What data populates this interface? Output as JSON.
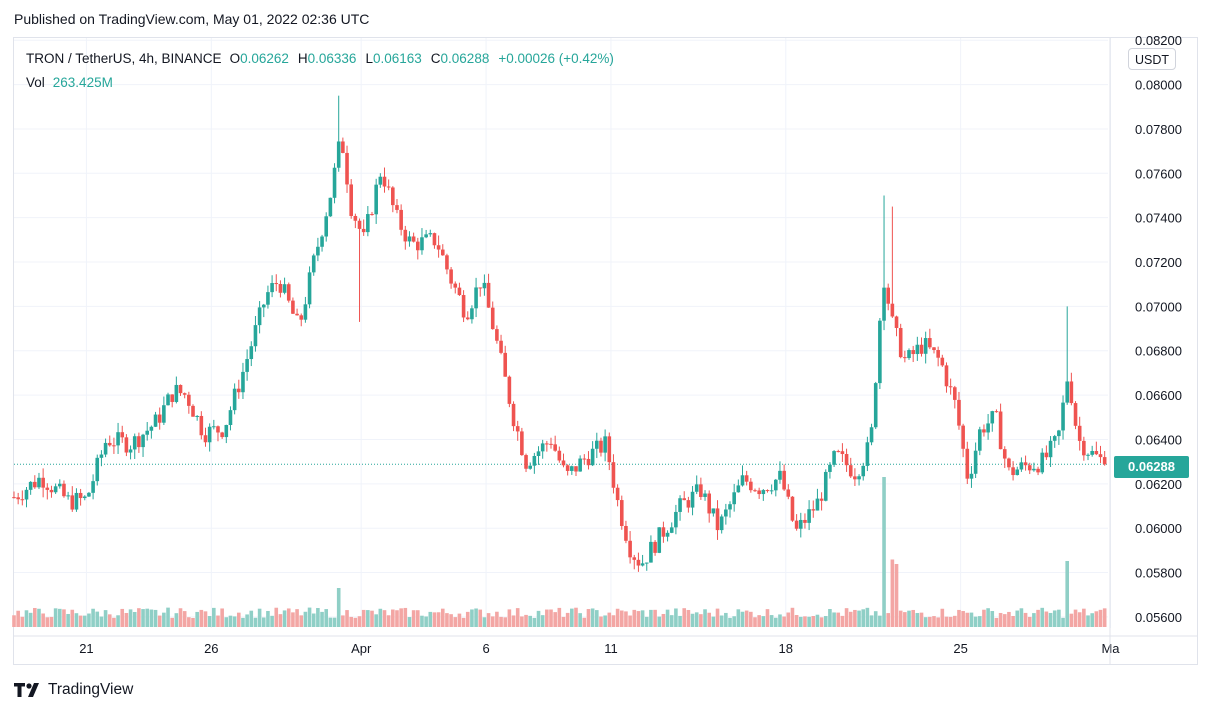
{
  "header": {
    "published": "Published on TradingView.com, May 01, 2022 02:36 UTC"
  },
  "legend": {
    "symbol": "TRON / TetherUS, 4h, BINANCE",
    "o_label": "O",
    "o_value": "0.06262",
    "h_label": "H",
    "h_value": "0.06336",
    "l_label": "L",
    "l_value": "0.06163",
    "c_label": "C",
    "c_value": "0.06288",
    "change": "+0.00026 (+0.42%)",
    "vol_label": "Vol",
    "vol_value": "263.425M"
  },
  "price_axis": {
    "unit": "USDT",
    "current_price_label": "0.06288"
  },
  "brand": {
    "name": "TradingView"
  },
  "colors": {
    "up": "#26a69a",
    "down": "#ef5350",
    "up_volume": "#8fcfc6",
    "down_volume": "#f3a6a4",
    "grid": "#f0f3fa"
  },
  "chart_data": {
    "type": "candlestick",
    "title": "TRON / TetherUS, 4h, BINANCE",
    "y_axis": {
      "ticks": [
        "0.08200",
        "0.08000",
        "0.07800",
        "0.07600",
        "0.07400",
        "0.07200",
        "0.07000",
        "0.06800",
        "0.06600",
        "0.06400",
        "0.06200",
        "0.06000",
        "0.05800",
        "0.05600"
      ],
      "range": [
        0.0555,
        0.0821
      ]
    },
    "x_axis": {
      "ticks": [
        {
          "label": "21",
          "day": 1
        },
        {
          "label": "26",
          "day": 6
        },
        {
          "label": "Apr",
          "day": 12
        },
        {
          "label": "6",
          "day": 17
        },
        {
          "label": "11",
          "day": 22
        },
        {
          "label": "18",
          "day": 29
        },
        {
          "label": "25",
          "day": 36
        },
        {
          "label": "Ma",
          "day": 42
        }
      ],
      "range_days": [
        -1.9,
        41.9
      ]
    },
    "last_close": 0.06288,
    "anchors": [
      {
        "day": -1.9,
        "price": 0.0614
      },
      {
        "day": -0.8,
        "price": 0.0623
      },
      {
        "day": 0.3,
        "price": 0.0612
      },
      {
        "day": 1.0,
        "price": 0.0613
      },
      {
        "day": 1.8,
        "price": 0.064
      },
      {
        "day": 2.8,
        "price": 0.0638
      },
      {
        "day": 3.8,
        "price": 0.0648
      },
      {
        "day": 4.5,
        "price": 0.0662
      },
      {
        "day": 5.0,
        "price": 0.066
      },
      {
        "day": 5.7,
        "price": 0.0643
      },
      {
        "day": 6.5,
        "price": 0.0645
      },
      {
        "day": 7.2,
        "price": 0.0668
      },
      {
        "day": 8.2,
        "price": 0.0705
      },
      {
        "day": 8.7,
        "price": 0.0712
      },
      {
        "day": 9.5,
        "price": 0.069
      },
      {
        "day": 10.1,
        "price": 0.072
      },
      {
        "day": 10.8,
        "price": 0.0752
      },
      {
        "day": 11.2,
        "price": 0.0777
      },
      {
        "day": 11.6,
        "price": 0.0745
      },
      {
        "day": 12.1,
        "price": 0.073
      },
      {
        "day": 12.8,
        "price": 0.0762
      },
      {
        "day": 13.4,
        "price": 0.074
      },
      {
        "day": 14.0,
        "price": 0.0728
      },
      {
        "day": 15.0,
        "price": 0.073
      },
      {
        "day": 15.6,
        "price": 0.0712
      },
      {
        "day": 16.2,
        "price": 0.0697
      },
      {
        "day": 16.8,
        "price": 0.0712
      },
      {
        "day": 17.3,
        "price": 0.069
      },
      {
        "day": 18.1,
        "price": 0.065
      },
      {
        "day": 18.6,
        "price": 0.063
      },
      {
        "day": 19.6,
        "price": 0.064
      },
      {
        "day": 20.2,
        "price": 0.0623
      },
      {
        "day": 21.0,
        "price": 0.0632
      },
      {
        "day": 21.8,
        "price": 0.0638
      },
      {
        "day": 22.3,
        "price": 0.061
      },
      {
        "day": 22.8,
        "price": 0.059
      },
      {
        "day": 23.2,
        "price": 0.0584
      },
      {
        "day": 24.0,
        "price": 0.0597
      },
      {
        "day": 24.8,
        "price": 0.061
      },
      {
        "day": 25.6,
        "price": 0.0617
      },
      {
        "day": 26.3,
        "price": 0.06
      },
      {
        "day": 27.3,
        "price": 0.0622
      },
      {
        "day": 28.0,
        "price": 0.0618
      },
      {
        "day": 28.8,
        "price": 0.0623
      },
      {
        "day": 29.4,
        "price": 0.0598
      },
      {
        "day": 30.3,
        "price": 0.0612
      },
      {
        "day": 31.0,
        "price": 0.0633
      },
      {
        "day": 31.8,
        "price": 0.0625
      },
      {
        "day": 32.4,
        "price": 0.0638
      },
      {
        "day": 32.9,
        "price": 0.0715
      },
      {
        "day": 33.3,
        "price": 0.069
      },
      {
        "day": 33.8,
        "price": 0.0675
      },
      {
        "day": 34.5,
        "price": 0.0683
      },
      {
        "day": 35.2,
        "price": 0.0675
      },
      {
        "day": 35.8,
        "price": 0.0655
      },
      {
        "day": 36.3,
        "price": 0.0622
      },
      {
        "day": 36.8,
        "price": 0.0645
      },
      {
        "day": 37.4,
        "price": 0.065
      },
      {
        "day": 37.9,
        "price": 0.0625
      },
      {
        "day": 38.6,
        "price": 0.0628
      },
      {
        "day": 39.3,
        "price": 0.063
      },
      {
        "day": 39.9,
        "price": 0.064
      },
      {
        "day": 40.3,
        "price": 0.067
      },
      {
        "day": 40.7,
        "price": 0.064
      },
      {
        "day": 41.3,
        "price": 0.0633
      },
      {
        "day": 41.9,
        "price": 0.06288
      }
    ],
    "wick_spikes": [
      {
        "day": 11.1,
        "high": 0.0795
      },
      {
        "day": 11.9,
        "low": 0.0693
      },
      {
        "day": 32.9,
        "high": 0.075
      },
      {
        "day": 33.3,
        "high": 0.0745
      },
      {
        "day": 40.3,
        "high": 0.07
      }
    ],
    "volume_spikes": [
      {
        "day": 32.9,
        "rel": 1.0
      },
      {
        "day": 33.2,
        "rel": 0.45
      },
      {
        "day": 33.4,
        "rel": 0.42
      },
      {
        "day": 40.3,
        "rel": 0.44
      },
      {
        "day": 11.1,
        "rel": 0.26
      }
    ]
  }
}
